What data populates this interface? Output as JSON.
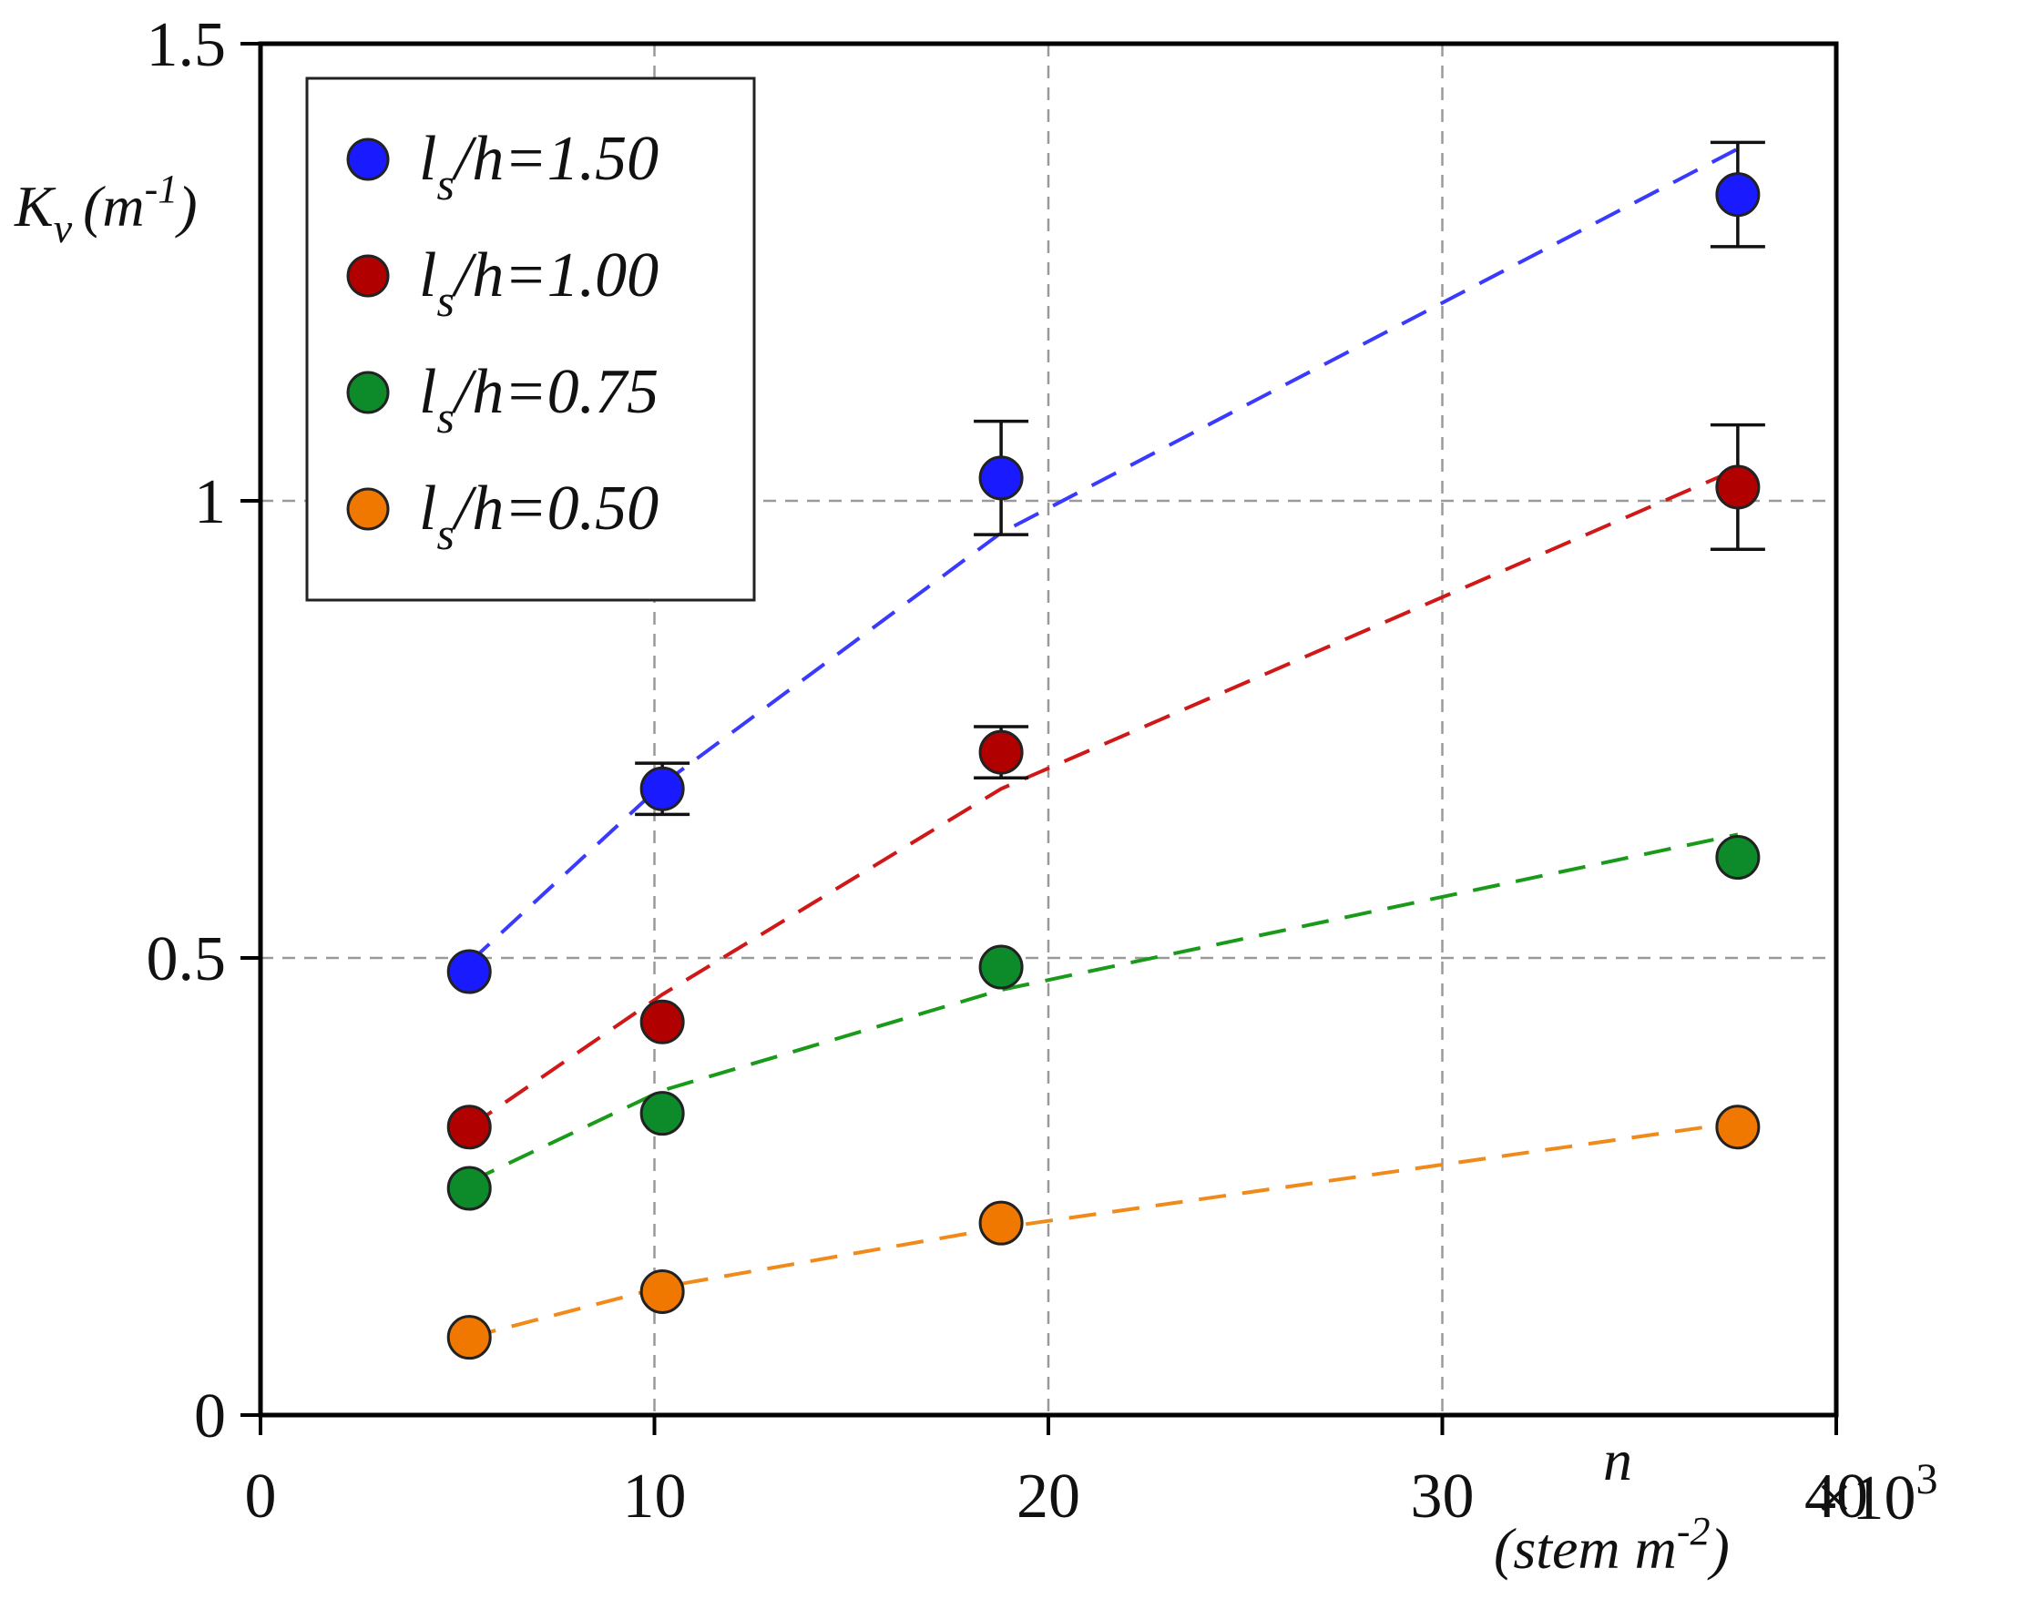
{
  "chart_data": {
    "type": "scatter",
    "title": "",
    "x_axis": {
      "label_main": "n",
      "label_unit": "(stem m",
      "label_unit_exp": "-2",
      "label_unit_close": ")",
      "range": [
        0,
        40000
      ],
      "ticks": [
        0,
        10000,
        20000,
        30000,
        40000
      ],
      "tick_labels": [
        "0",
        "10",
        "20",
        "30",
        "40"
      ],
      "multiplier_label": "×10",
      "multiplier_exp": "3"
    },
    "y_axis": {
      "label_symbol": "K",
      "label_sub": "v",
      "label_unit": "(m",
      "label_unit_exp": "-1",
      "label_unit_close": ")",
      "range": [
        0,
        1.5
      ],
      "ticks": [
        0,
        0.5,
        1,
        1.5
      ],
      "tick_labels": [
        "0",
        "0.5",
        "1",
        "1.5"
      ]
    },
    "grid": true,
    "legend": {
      "position": "top-left",
      "label_prefix": "l",
      "label_sub": "s"
    },
    "series": [
      {
        "name": "l_s/h=1.50",
        "legend_suffix": "/h=1.50",
        "color": "#1a1aff",
        "line_color": "#3a3aff",
        "x": [
          5300,
          10200,
          18800,
          37500
        ],
        "y": [
          0.485,
          0.685,
          1.025,
          1.335
        ],
        "err": [
          null,
          0.028,
          0.062,
          0.057
        ],
        "fit_x": [
          5300,
          10200,
          18800,
          37500
        ],
        "fit_y": [
          0.495,
          0.69,
          0.965,
          1.385
        ]
      },
      {
        "name": "l_s/h=1.00",
        "legend_suffix": "/h=1.00",
        "color": "#b00000",
        "line_color": "#d01818",
        "x": [
          5300,
          10200,
          18800,
          37500
        ],
        "y": [
          0.315,
          0.43,
          0.725,
          1.015
        ],
        "err": [
          null,
          null,
          0.028,
          0.068
        ],
        "fit_x": [
          5300,
          10200,
          18800,
          37500
        ],
        "fit_y": [
          0.315,
          0.46,
          0.685,
          1.035
        ]
      },
      {
        "name": "l_s/h=0.75",
        "legend_suffix": "/h=0.75",
        "color": "#0d8a2a",
        "line_color": "#1a9a1a",
        "x": [
          5300,
          10200,
          18800,
          37500
        ],
        "y": [
          0.248,
          0.33,
          0.49,
          0.61
        ],
        "err": [
          null,
          null,
          null,
          null
        ],
        "fit_x": [
          5300,
          10200,
          18800,
          37500
        ],
        "fit_y": [
          0.255,
          0.355,
          0.465,
          0.635
        ]
      },
      {
        "name": "l_s/h=0.50",
        "legend_suffix": "/h=0.50",
        "color": "#f07800",
        "line_color": "#f08a1a",
        "x": [
          5300,
          10200,
          18800,
          37500
        ],
        "y": [
          0.085,
          0.135,
          0.21,
          0.315
        ],
        "err": [
          null,
          null,
          null,
          null
        ],
        "fit_x": [
          5300,
          10200,
          18800,
          37500
        ],
        "fit_y": [
          0.085,
          0.14,
          0.205,
          0.32
        ]
      }
    ]
  }
}
